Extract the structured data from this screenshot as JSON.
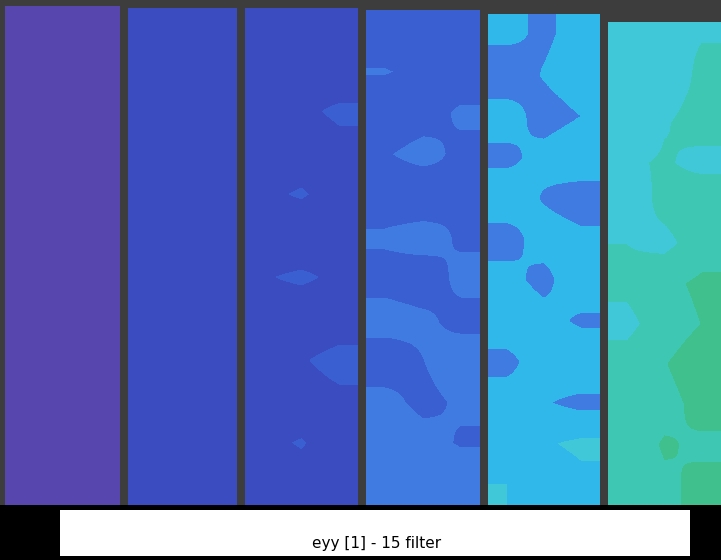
{
  "chart_data": {
    "type": "heatmap",
    "panels": [
      {
        "cells": [
          [
            0.0015,
            0.0016,
            0.0015
          ],
          [
            0.0016,
            0.0015,
            0.0016
          ],
          [
            0.0014,
            0.0016,
            0.0015
          ],
          [
            0.0015,
            0.0015,
            0.0016
          ],
          [
            0.0016,
            0.0014,
            0.0015
          ],
          [
            0.0015,
            0.0016,
            0.0015
          ],
          [
            0.0015,
            0.0015,
            0.0014
          ],
          [
            0.0016,
            0.0015,
            0.0015
          ],
          [
            0.0015,
            0.0016,
            0.0016
          ],
          [
            0.0014,
            0.0015,
            0.0015
          ],
          [
            0.0015,
            0.0015,
            0.0016
          ],
          [
            0.0016,
            0.0015,
            0.0015
          ]
        ]
      },
      {
        "cells": [
          [
            0.0046,
            0.0048,
            0.0047
          ],
          [
            0.0049,
            0.0046,
            0.0048
          ],
          [
            0.0047,
            0.005,
            0.0046
          ],
          [
            0.0048,
            0.0047,
            0.0049
          ],
          [
            0.0046,
            0.0049,
            0.0048
          ],
          [
            0.005,
            0.0047,
            0.0046
          ],
          [
            0.0047,
            0.0048,
            0.005
          ],
          [
            0.0049,
            0.0046,
            0.0047
          ],
          [
            0.0048,
            0.005,
            0.0049
          ],
          [
            0.0046,
            0.0047,
            0.0048
          ],
          [
            0.0049,
            0.0048,
            0.0047
          ],
          [
            0.0047,
            0.0049,
            0.005
          ]
        ]
      },
      {
        "cells": [
          [
            0.005,
            0.0055,
            0.0058
          ],
          [
            0.0062,
            0.0058,
            0.0052
          ],
          [
            0.0055,
            0.006,
            0.0066
          ],
          [
            0.005,
            0.0054,
            0.0058
          ],
          [
            0.006,
            0.0065,
            0.0056
          ],
          [
            0.0054,
            0.005,
            0.0058
          ],
          [
            0.0062,
            0.0066,
            0.006
          ],
          [
            0.0056,
            0.0052,
            0.0055
          ],
          [
            0.0058,
            0.0062,
            0.0068
          ],
          [
            0.0054,
            0.0057,
            0.006
          ],
          [
            0.0061,
            0.0064,
            0.0058
          ],
          [
            0.0055,
            0.0059,
            0.0062
          ]
        ]
      },
      {
        "cells": [
          [
            0.0075,
            0.0068,
            0.0082
          ],
          [
            0.0092,
            0.0085,
            0.0072
          ],
          [
            0.007,
            0.0078,
            0.0095
          ],
          [
            0.0088,
            0.01,
            0.0084
          ],
          [
            0.0072,
            0.0068,
            0.009
          ],
          [
            0.0095,
            0.0104,
            0.0086
          ],
          [
            0.008,
            0.0074,
            0.0098
          ],
          [
            0.0102,
            0.0096,
            0.0082
          ],
          [
            0.0076,
            0.009,
            0.0106
          ],
          [
            0.0098,
            0.0084,
            0.0094
          ],
          [
            0.011,
            0.01,
            0.0088
          ],
          [
            0.0092,
            0.0106,
            0.0112
          ]
        ]
      },
      {
        "cells": [
          [
            0.0125,
            0.0112,
            0.013
          ],
          [
            0.0098,
            0.012,
            0.0135
          ],
          [
            0.0132,
            0.0105,
            0.0118
          ],
          [
            0.011,
            0.0128,
            0.014
          ],
          [
            0.0138,
            0.0115,
            0.0102
          ],
          [
            0.0105,
            0.0132,
            0.0125
          ],
          [
            0.0128,
            0.0108,
            0.0142
          ],
          [
            0.014,
            0.013,
            0.0112
          ],
          [
            0.0108,
            0.0136,
            0.0145
          ],
          [
            0.0134,
            0.012,
            0.011
          ],
          [
            0.0118,
            0.0142,
            0.015
          ],
          [
            0.0145,
            0.0128,
            0.0138
          ]
        ]
      },
      {
        "cells": [
          [
            0.015,
            0.0165,
            0.0172
          ],
          [
            0.016,
            0.0158,
            0.0178
          ],
          [
            0.0145,
            0.017,
            0.0182
          ],
          [
            0.0168,
            0.0175,
            0.0165
          ],
          [
            0.0155,
            0.018,
            0.019
          ],
          [
            0.0172,
            0.0165,
            0.0185
          ],
          [
            0.0178,
            0.0192,
            0.0205
          ],
          [
            0.0165,
            0.0185,
            0.02
          ],
          [
            0.0182,
            0.0198,
            0.0215
          ],
          [
            0.0175,
            0.019,
            0.0208
          ],
          [
            0.0185,
            0.0202,
            0.0195
          ],
          [
            0.0178,
            0.0195,
            0.0205
          ]
        ]
      }
    ],
    "colorbar_label": "eyy [1] - 15 filter",
    "colorbar_range": [
      -0.00184353,
      0.0417053
    ],
    "colorbar_ticks": [
      -0.00184353,
      0.0417053
    ],
    "tick_labels": false
  }
}
